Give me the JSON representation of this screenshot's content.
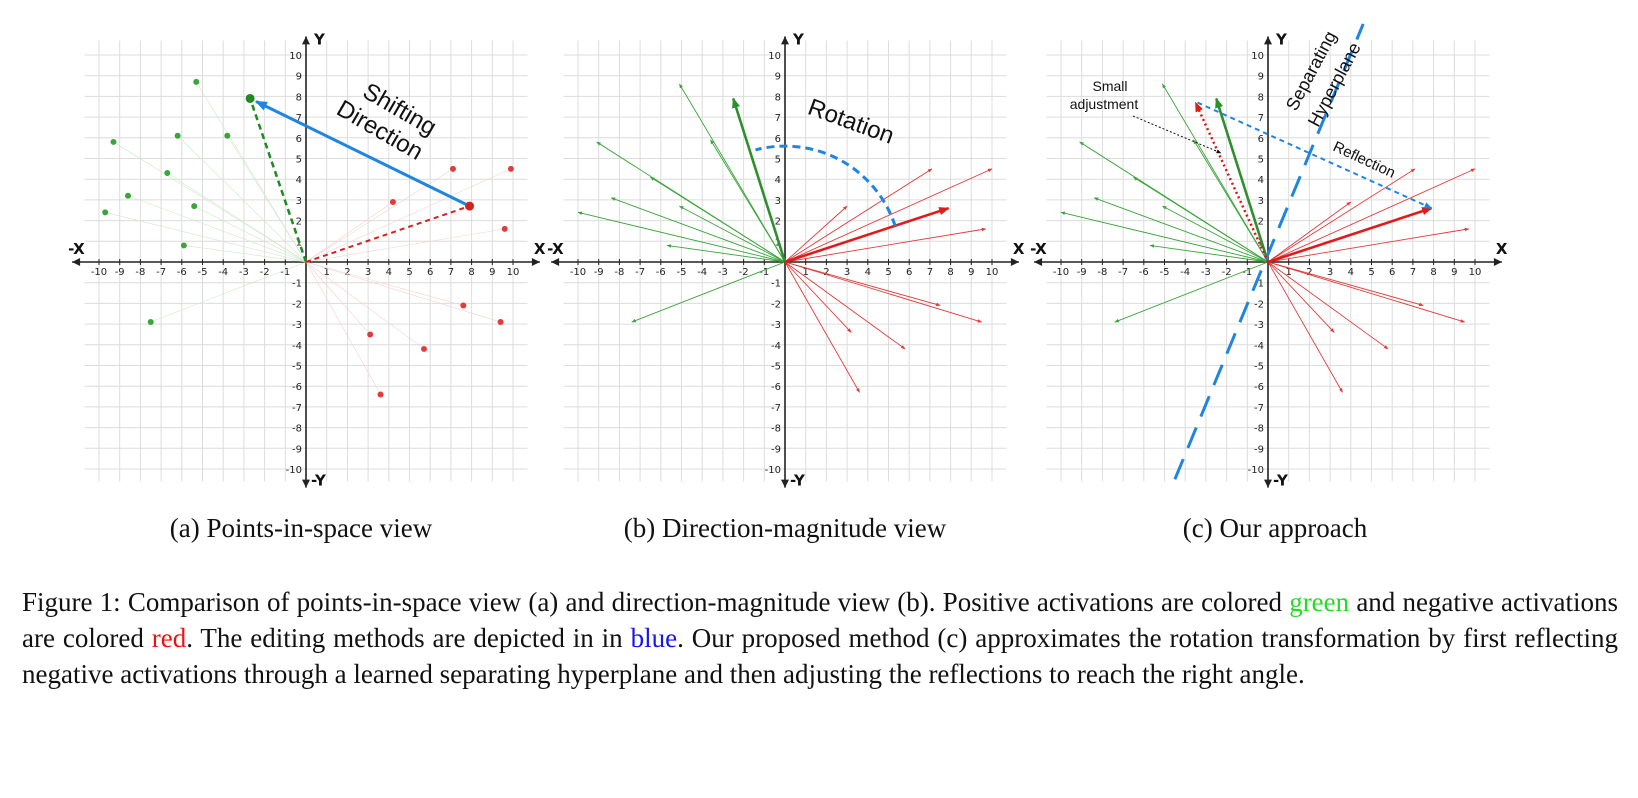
{
  "panels": [
    {
      "id": "a",
      "subcaption": "(a) Points-in-space view",
      "axis_labels": {
        "x_pos": "X",
        "x_neg": "-X",
        "y_pos": "Y",
        "y_neg": "-Y"
      },
      "ticks": [
        -10,
        -9,
        -8,
        -7,
        -6,
        -5,
        -4,
        -3,
        -2,
        -1,
        1,
        2,
        3,
        4,
        5,
        6,
        7,
        8,
        9,
        10
      ],
      "green_points": [
        [
          -9.7,
          2.4
        ],
        [
          -9.3,
          5.8
        ],
        [
          -8.6,
          3.2
        ],
        [
          -6.7,
          4.3
        ],
        [
          -6.2,
          6.1
        ],
        [
          -5.3,
          8.7
        ],
        [
          -5.4,
          2.7
        ],
        [
          -5.9,
          0.8
        ],
        [
          -3.8,
          6.1
        ],
        [
          -7.5,
          -2.9
        ]
      ],
      "red_points": [
        [
          7.1,
          4.5
        ],
        [
          4.2,
          2.9
        ],
        [
          9.6,
          1.6
        ],
        [
          9.9,
          4.5
        ],
        [
          7.6,
          -2.1
        ],
        [
          9.4,
          -2.9
        ],
        [
          5.7,
          -4.2
        ],
        [
          3.1,
          -3.5
        ],
        [
          3.6,
          -6.4
        ]
      ],
      "highlight_green": [
        -2.7,
        7.9
      ],
      "highlight_red": [
        7.9,
        2.7
      ],
      "annotations": [
        {
          "text": "Shifting Direction",
          "color": "#111111"
        }
      ]
    },
    {
      "id": "b",
      "subcaption": "(b) Direction-magnitude view",
      "axis_labels": {
        "x_pos": "X",
        "x_neg": "-X",
        "y_pos": "Y",
        "y_neg": "-Y"
      },
      "ticks": [
        -10,
        -9,
        -8,
        -7,
        -6,
        -5,
        -4,
        -3,
        -2,
        -1,
        1,
        2,
        3,
        4,
        5,
        6,
        7,
        8,
        9,
        10
      ],
      "green_vectors": [
        [
          -10,
          2.4
        ],
        [
          -9.1,
          5.8
        ],
        [
          -8.4,
          3.1
        ],
        [
          -6.5,
          4.1
        ],
        [
          -5.1,
          2.7
        ],
        [
          -5.7,
          0.8
        ],
        [
          -5.1,
          8.6
        ],
        [
          -3.6,
          5.9
        ],
        [
          -7.4,
          -2.9
        ]
      ],
      "red_vectors": [
        [
          7.1,
          4.5
        ],
        [
          10,
          4.5
        ],
        [
          9.7,
          1.6
        ],
        [
          7.5,
          -2.1
        ],
        [
          9.5,
          -2.9
        ],
        [
          5.8,
          -4.2
        ],
        [
          3.2,
          -3.4
        ],
        [
          3.6,
          -6.3
        ],
        [
          3,
          2.7
        ]
      ],
      "highlight_green": [
        -2.5,
        7.9
      ],
      "highlight_red": [
        7.9,
        2.6
      ],
      "annotations": [
        {
          "text": "Rotation",
          "color": "#111111"
        }
      ]
    },
    {
      "id": "c",
      "subcaption": "(c) Our approach",
      "axis_labels": {
        "x_pos": "X",
        "x_neg": "-X",
        "y_pos": "Y",
        "y_neg": "-Y"
      },
      "ticks": [
        -10,
        -9,
        -8,
        -7,
        -6,
        -5,
        -4,
        -3,
        -2,
        -1,
        1,
        2,
        3,
        4,
        5,
        6,
        7,
        8,
        9,
        10
      ],
      "green_vectors": [
        [
          -10,
          2.4
        ],
        [
          -9.1,
          5.8
        ],
        [
          -8.4,
          3.1
        ],
        [
          -6.5,
          4.1
        ],
        [
          -5.1,
          2.7
        ],
        [
          -5.7,
          0.8
        ],
        [
          -5.1,
          8.6
        ],
        [
          -3.6,
          5.9
        ],
        [
          -7.4,
          -2.9
        ]
      ],
      "red_vectors": [
        [
          7.1,
          4.5
        ],
        [
          10,
          4.5
        ],
        [
          9.7,
          1.6
        ],
        [
          7.5,
          -2.1
        ],
        [
          9.5,
          -2.9
        ],
        [
          5.8,
          -4.2
        ],
        [
          3.2,
          -3.4
        ],
        [
          3.6,
          -6.3
        ],
        [
          4,
          2.9
        ]
      ],
      "highlight_green": [
        -2.5,
        7.9
      ],
      "highlight_red": [
        7.9,
        2.6
      ],
      "reflected_red": [
        -3.5,
        7.7
      ],
      "reflected_blue": [
        -3.6,
        7.8
      ],
      "hyperplane": [
        [
          -4.5,
          -10.5
        ],
        [
          4.6,
          11.5
        ]
      ],
      "annotations": [
        {
          "text": "Separating Hyperplane",
          "color": "#111111"
        },
        {
          "text": "Small adjustment",
          "color": "#111111"
        },
        {
          "text": "Reflection",
          "color": "#111111"
        }
      ]
    }
  ],
  "colors": {
    "green": "#3aa53a",
    "red": "#e23b3b",
    "blue": "#1f85e0",
    "grid": "#dcdcdc",
    "axis": "#222222"
  },
  "caption": {
    "label": "Figure 1:",
    "part1": "Comparison of points-in-space view (a) and direction-magnitude view (b). Positive activations are colored",
    "green_word": "green",
    "part2": "and negative activations are colored",
    "red_word": "red",
    "part3": ". The editing methods are depicted in in",
    "blue_word": "blue",
    "part4": ". Our proposed method (c) approximates the rotation transformation by first reflecting negative activations through a learned separating hyperplane and then adjusting the reflections to reach the right angle."
  }
}
